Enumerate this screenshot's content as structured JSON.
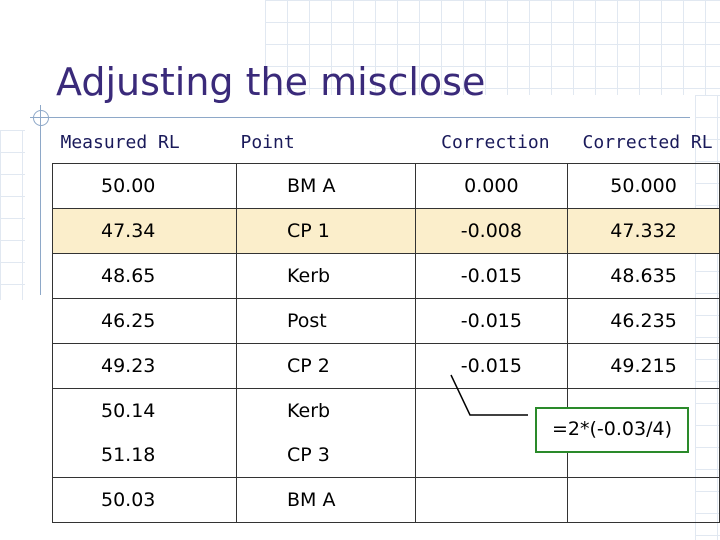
{
  "slide": {
    "title": "Adjusting the misclose"
  },
  "table": {
    "headers": [
      "Measured RL",
      "Point",
      "Correction",
      "Corrected RL"
    ],
    "rows": [
      {
        "measured": "50.00",
        "point": "BM A",
        "correction": "0.000",
        "corrected": "50.000"
      },
      {
        "measured": "47.34",
        "point": "CP 1",
        "correction": "-0.008",
        "corrected": "47.332"
      },
      {
        "measured": "48.65",
        "point": "Kerb",
        "correction": "-0.015",
        "corrected": "48.635"
      },
      {
        "measured": "46.25",
        "point": "Post",
        "correction": "-0.015",
        "corrected": "46.235"
      },
      {
        "measured": "49.23",
        "point": "CP 2",
        "correction": "-0.015",
        "corrected": "49.215"
      },
      {
        "measured": "50.14",
        "point": "Kerb",
        "correction": "",
        "corrected": ""
      },
      {
        "measured": "51.18",
        "point": "CP 3",
        "correction": "",
        "corrected": ""
      },
      {
        "measured": "50.03",
        "point": "BM A",
        "correction": "",
        "corrected": ""
      }
    ]
  },
  "callout": {
    "text": "=2*(-0.03/4)"
  },
  "colors": {
    "title": "#3a2a7a",
    "highlight_row": "#fbeecb",
    "emphasis_text": "#cc0000",
    "callout_border": "#2a8a2a"
  }
}
